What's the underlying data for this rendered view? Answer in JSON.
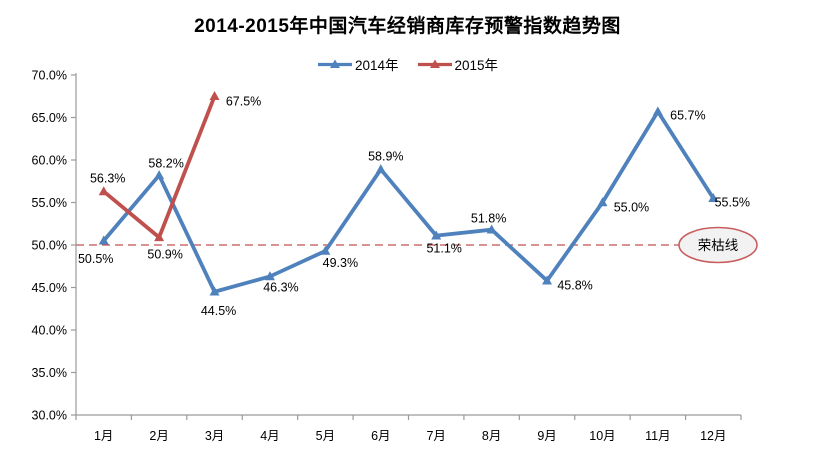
{
  "chart_data": {
    "type": "line",
    "title": "2014-2015年中国汽车经销商库存预警指数趋势图",
    "categories": [
      "1月",
      "2月",
      "3月",
      "4月",
      "5月",
      "6月",
      "7月",
      "8月",
      "9月",
      "10月",
      "11月",
      "12月"
    ],
    "series": [
      {
        "name": "2014年",
        "color": "#4F81BD",
        "marker": "triangle",
        "values": [
          50.5,
          58.2,
          44.5,
          46.3,
          49.3,
          58.9,
          51.1,
          51.8,
          45.8,
          55.0,
          65.7,
          55.5
        ],
        "label_offsets": [
          [
            -8,
            22
          ],
          [
            7,
            -8
          ],
          [
            4,
            23
          ],
          [
            11,
            15
          ],
          [
            15,
            16
          ],
          [
            5,
            -9
          ],
          [
            8,
            17
          ],
          [
            -3,
            -7
          ],
          [
            28,
            9
          ],
          [
            29,
            9
          ],
          [
            30,
            8
          ],
          [
            19,
            8
          ]
        ]
      },
      {
        "name": "2015年",
        "color": "#C0504D",
        "marker": "triangle",
        "values": [
          56.3,
          50.9,
          67.5
        ],
        "label_offsets": [
          [
            4,
            -9
          ],
          [
            6,
            21
          ],
          [
            29,
            9
          ]
        ]
      }
    ],
    "ylim": [
      30,
      70
    ],
    "ytick_step": 5,
    "ytick_format": "0.0%",
    "grid": false,
    "legend_position": "top",
    "reference_line": {
      "value": 50,
      "label": "荣枯线",
      "style": "dashed",
      "color": "#C0504D"
    },
    "reference_bubble": {
      "fill": "#F2F2F2",
      "stroke": "#C75D5D",
      "text_color": "#000000"
    },
    "axis_color": "#9A9A9A",
    "label_color": "#000000"
  }
}
